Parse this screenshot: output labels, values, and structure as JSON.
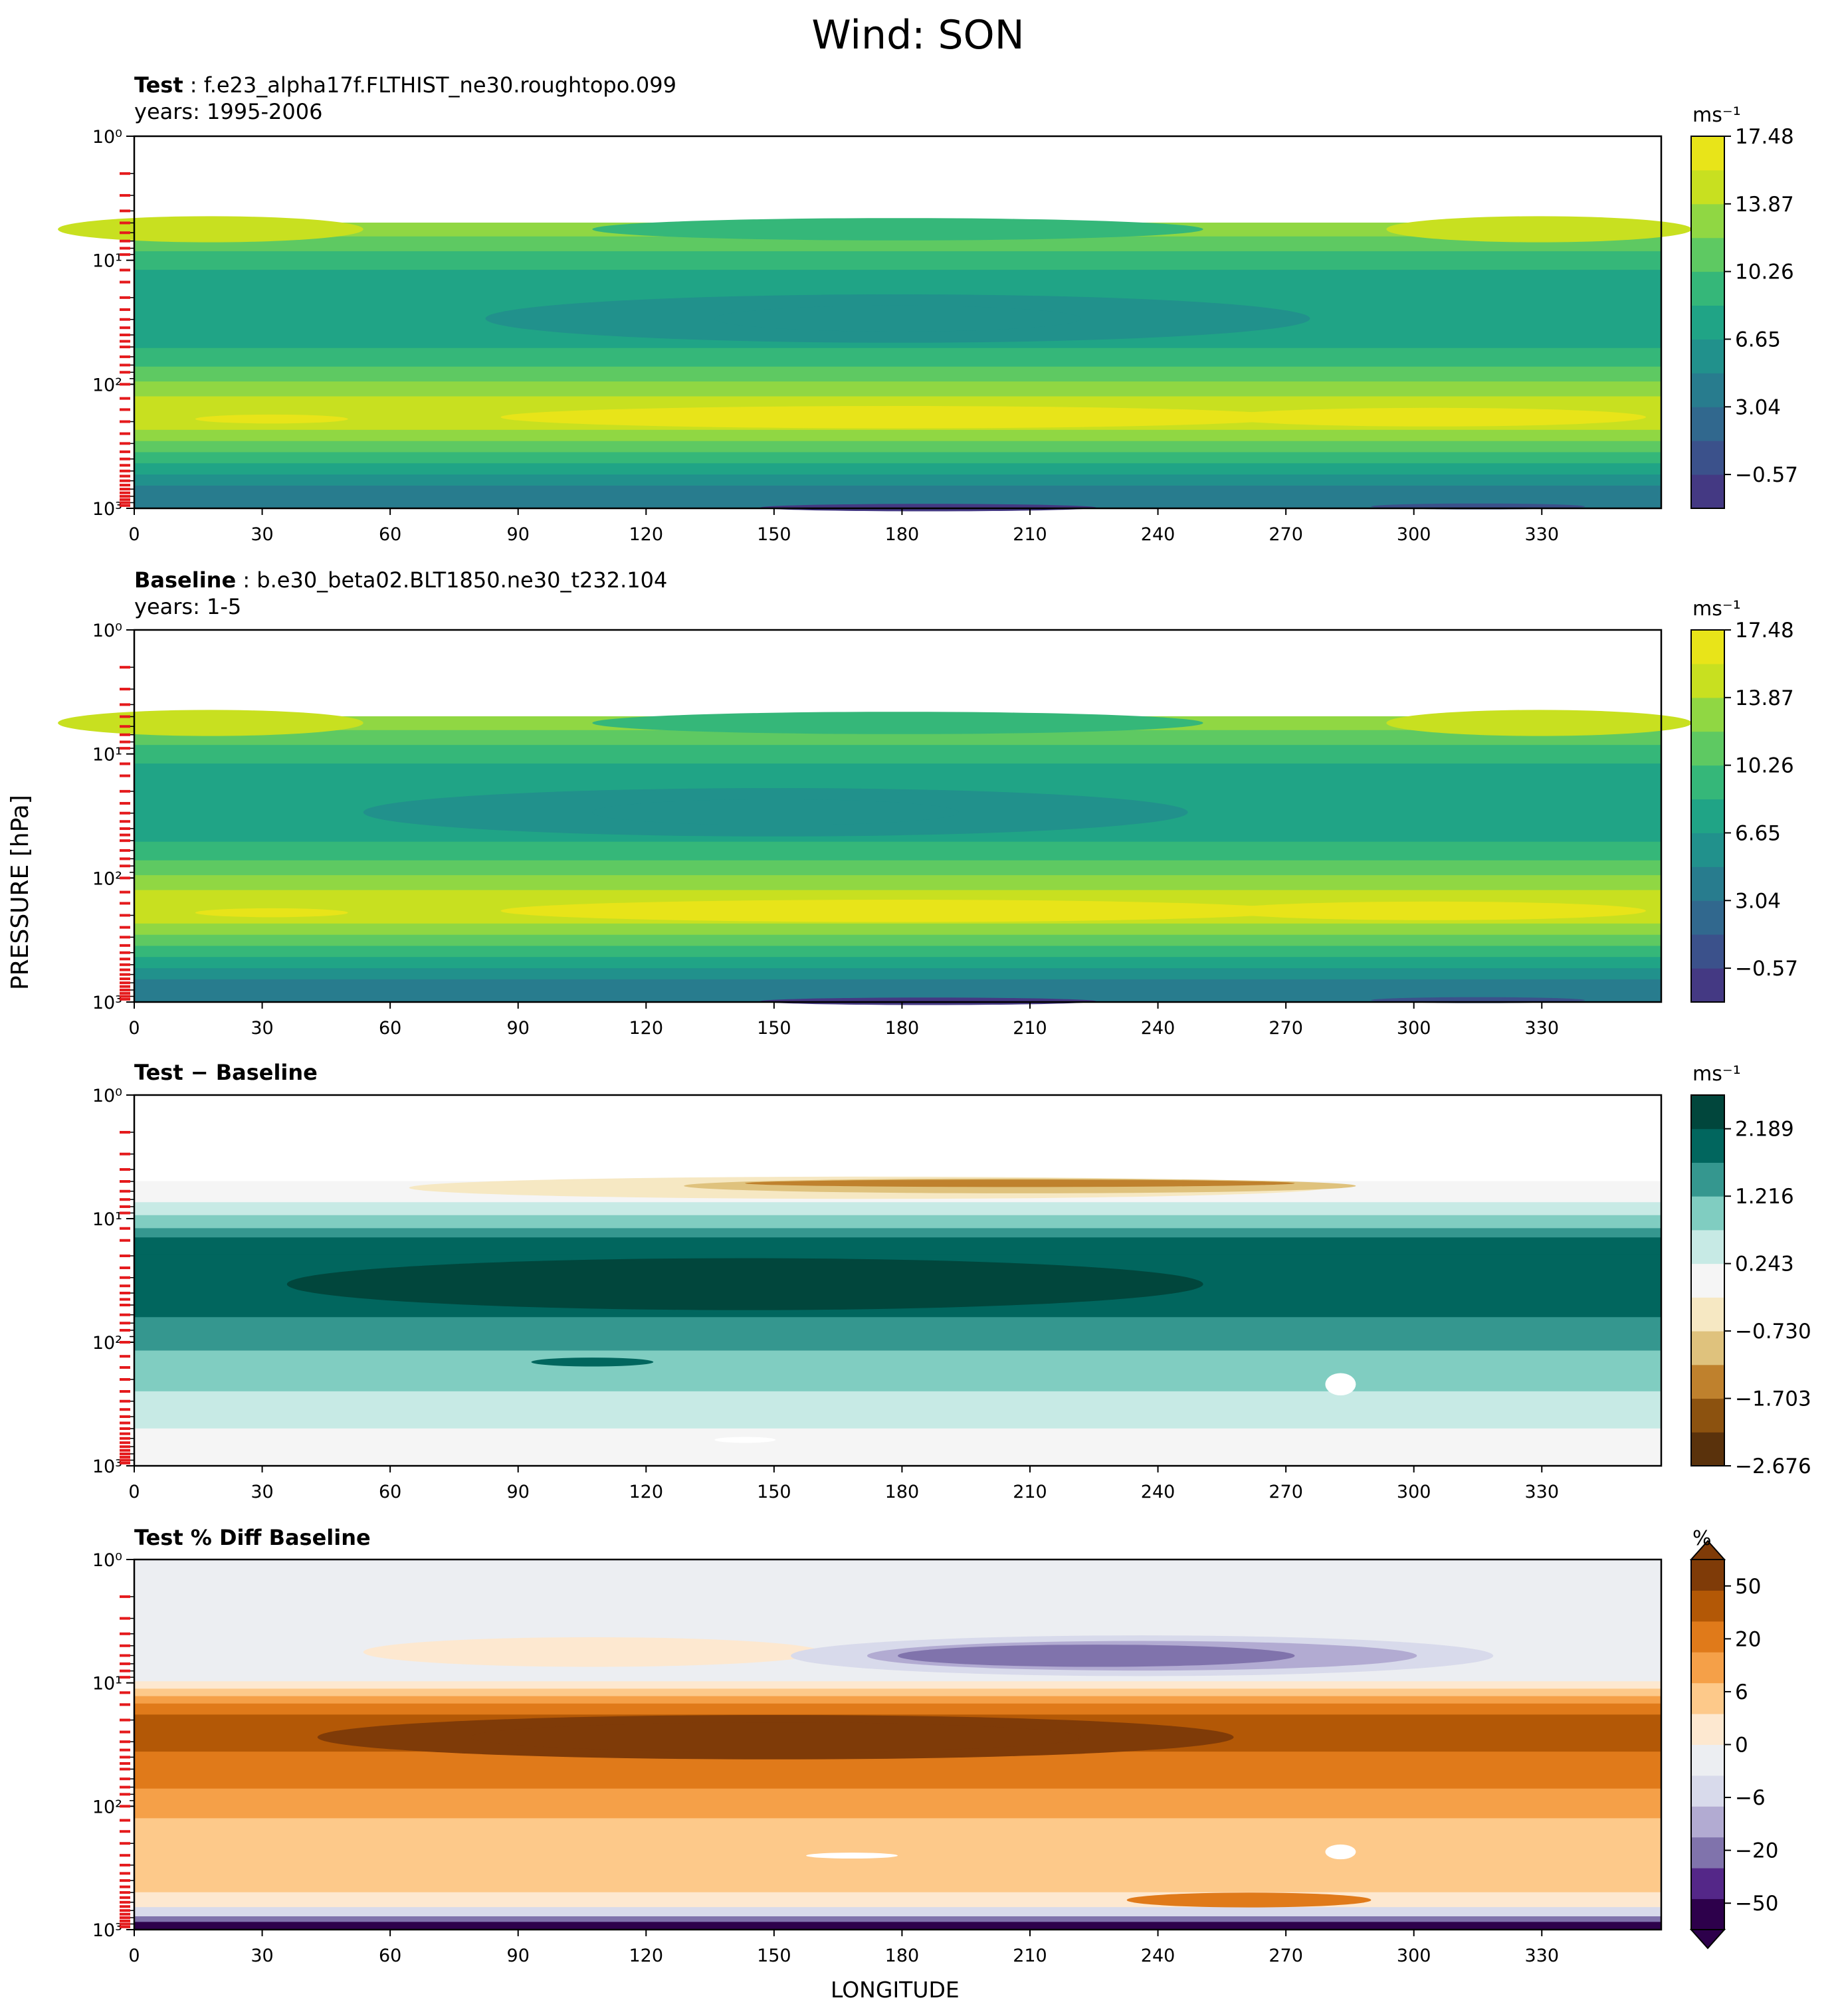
{
  "suptitle": "Wind: SON",
  "xlabel": "LONGITUDE",
  "ylabel": "PRESSURE [hPa]",
  "colors": {
    "viridis": [
      "#443983",
      "#3b518b",
      "#31688e",
      "#287c8e",
      "#21918c",
      "#20a486",
      "#35b779",
      "#5ec962",
      "#90d743",
      "#c8e020",
      "#e8e419"
    ],
    "brbg": [
      "#5a320c",
      "#8c520f",
      "#bf812d",
      "#dfc27d",
      "#f6e8c3",
      "#f5f5f5",
      "#c7eae5",
      "#80cdc1",
      "#35978f",
      "#01665e",
      "#01463c"
    ],
    "puor": [
      "#2d004b",
      "#542788",
      "#8073ac",
      "#b2abd2",
      "#d8daeb",
      "#eceef2",
      "#fde8d0",
      "#fdc98a",
      "#f5a048",
      "#e07a1a",
      "#b35806",
      "#7f3b08"
    ],
    "ticks_red": "#e41a1c"
  },
  "chart_data": [
    {
      "type": "contourf",
      "panel": "test",
      "label": "Test",
      "case": "f.e23_alpha17f.FLTHIST_ne30.roughtopo.099",
      "years": "years: 1995-2006",
      "colorbar_label": "ms⁻¹",
      "colorbar_ticks": [
        "17.48",
        "13.87",
        "10.26",
        "6.65",
        "3.04",
        "−0.57"
      ],
      "xticks": [
        "0",
        "30",
        "60",
        "90",
        "120",
        "150",
        "180",
        "210",
        "240",
        "270",
        "300",
        "330"
      ],
      "yticks": [
        "10⁰",
        "10¹",
        "10²",
        "10³"
      ],
      "xlim": [
        0,
        358
      ],
      "ylim_hPa": [
        1,
        1000
      ],
      "pattern": "jet_max_100-200hPa_weak_70hPa"
    },
    {
      "type": "contourf",
      "panel": "baseline",
      "label": "Baseline",
      "case": "b.e30_beta02.BLT1850.ne30_t232.104",
      "years": "years: 1-5",
      "colorbar_label": "ms⁻¹",
      "colorbar_ticks": [
        "17.48",
        "13.87",
        "10.26",
        "6.65",
        "3.04",
        "−0.57"
      ],
      "xticks": [
        "0",
        "30",
        "60",
        "90",
        "120",
        "150",
        "180",
        "210",
        "240",
        "270",
        "300",
        "330"
      ],
      "yticks": [
        "10⁰",
        "10¹",
        "10²",
        "10³"
      ],
      "xlim": [
        0,
        358
      ],
      "ylim_hPa": [
        1,
        1000
      ],
      "pattern": "jet_max_100-200hPa_weak_50hPa"
    },
    {
      "type": "contourf",
      "panel": "diff",
      "label": "Test − Baseline",
      "colorbar_label": "ms⁻¹",
      "colorbar_ticks": [
        "2.189",
        "1.216",
        "0.243",
        "−0.730",
        "−1.703",
        "−2.676"
      ],
      "xticks": [
        "0",
        "30",
        "60",
        "90",
        "120",
        "150",
        "180",
        "210",
        "240",
        "270",
        "300",
        "330"
      ],
      "yticks": [
        "10⁰",
        "10¹",
        "10²",
        "10³"
      ],
      "xlim": [
        0,
        358
      ],
      "ylim_hPa": [
        1,
        1000
      ],
      "pattern": "positive_band_20-70hPa"
    },
    {
      "type": "contourf",
      "panel": "pctdiff",
      "label": "Test % Diff Baseline",
      "colorbar_label": "%",
      "colorbar_ticks": [
        "50",
        "20",
        "6",
        "0",
        "−6",
        "−20",
        "−50"
      ],
      "xticks": [
        "0",
        "30",
        "60",
        "90",
        "120",
        "150",
        "180",
        "210",
        "240",
        "270",
        "300",
        "330"
      ],
      "yticks": [
        "10⁰",
        "10¹",
        "10²",
        "10³"
      ],
      "xlim": [
        0,
        358
      ],
      "ylim_hPa": [
        1,
        1000
      ],
      "pattern": "positive_band_20-70hPa_negative_aloft"
    }
  ]
}
